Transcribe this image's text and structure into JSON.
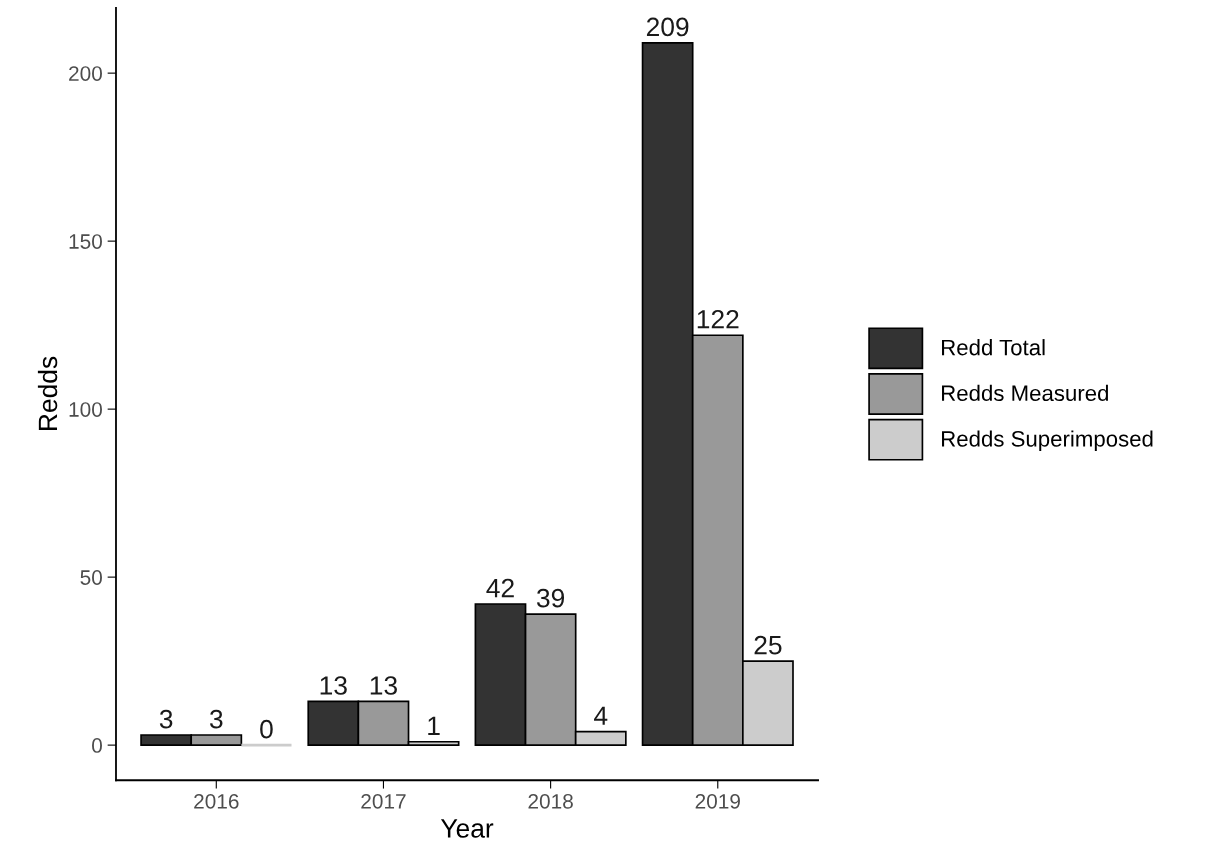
{
  "chart_data": {
    "type": "bar",
    "xlabel": "Year",
    "ylabel": "Redds",
    "categories": [
      "2016",
      "2017",
      "2018",
      "2019"
    ],
    "series": [
      {
        "name": "Redd Total",
        "color": "#333333",
        "values": [
          3,
          13,
          42,
          209
        ]
      },
      {
        "name": "Redds Measured",
        "color": "#999999",
        "values": [
          3,
          13,
          39,
          122
        ]
      },
      {
        "name": "Redds Superimposed",
        "color": "#cccccc",
        "values": [
          0,
          1,
          4,
          25
        ]
      }
    ],
    "ylim": [
      -10.45,
      219.45
    ],
    "yticks": [
      0,
      50,
      100,
      150,
      200
    ],
    "grid": false,
    "legend": "right",
    "data_labels": true
  }
}
